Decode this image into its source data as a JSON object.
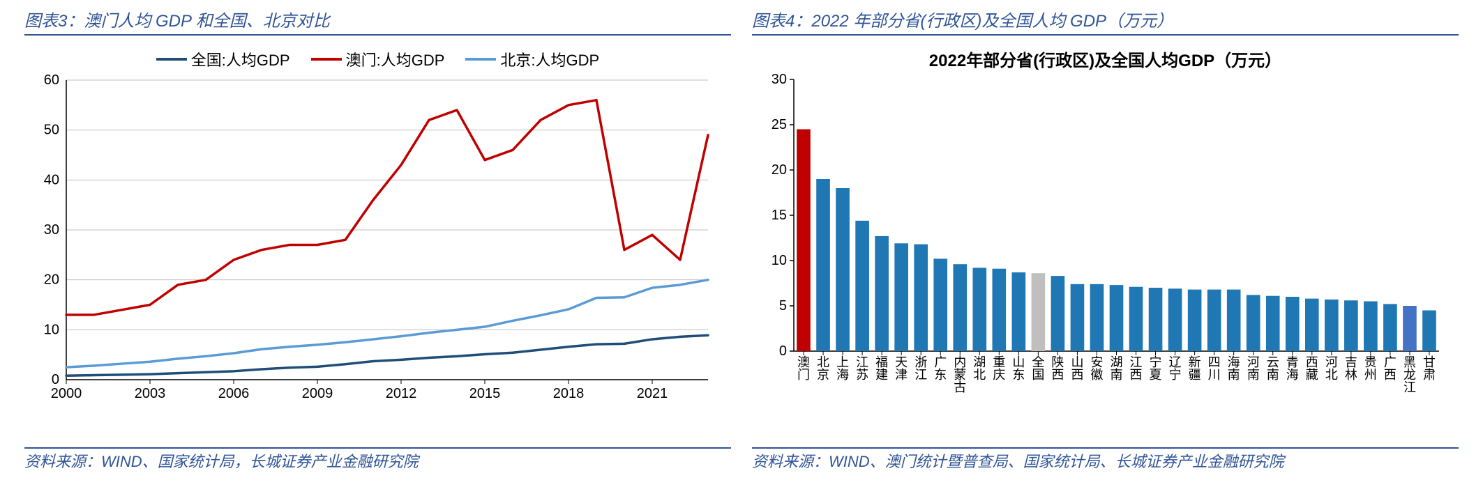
{
  "left": {
    "title": "图表3：澳门人均 GDP 和全国、北京对比",
    "source": "资料来源：WIND、国家统计局，长城证券产业金融研究院",
    "chart": {
      "type": "line",
      "background_color": "#ffffff",
      "grid_color": "#bfbfbf",
      "axis_color": "#000000",
      "label_fontsize": 20,
      "line_width": 3.5,
      "xlim": [
        2000,
        2023
      ],
      "xticks": [
        2000,
        2003,
        2006,
        2009,
        2012,
        2015,
        2018,
        2021
      ],
      "ylim": [
        0,
        60
      ],
      "yticks": [
        0,
        10,
        20,
        30,
        40,
        50,
        60
      ],
      "years": [
        2000,
        2001,
        2002,
        2003,
        2004,
        2005,
        2006,
        2007,
        2008,
        2009,
        2010,
        2011,
        2012,
        2013,
        2014,
        2015,
        2016,
        2017,
        2018,
        2019,
        2020,
        2021,
        2022,
        2023
      ],
      "legend": {
        "national": "全国:人均GDP",
        "macau": "澳门:人均GDP",
        "beijing": "北京:人均GDP"
      },
      "series": {
        "national": {
          "color": "#1f4e79",
          "values": [
            0.8,
            0.9,
            1.0,
            1.1,
            1.3,
            1.5,
            1.7,
            2.1,
            2.4,
            2.6,
            3.1,
            3.7,
            4.0,
            4.4,
            4.7,
            5.1,
            5.4,
            6.0,
            6.6,
            7.1,
            7.2,
            8.1,
            8.6,
            8.9
          ]
        },
        "macau": {
          "color": "#c00000",
          "values": [
            13,
            13,
            14,
            15,
            19,
            20,
            24,
            26,
            27,
            27,
            28,
            36,
            43,
            52,
            54,
            44,
            46,
            52,
            55,
            56,
            26,
            29,
            24,
            49
          ]
        },
        "beijing": {
          "color": "#5b9bd5",
          "values": [
            2.5,
            2.8,
            3.2,
            3.6,
            4.2,
            4.7,
            5.3,
            6.1,
            6.6,
            7.0,
            7.5,
            8.1,
            8.7,
            9.4,
            10.0,
            10.6,
            11.8,
            12.9,
            14.1,
            16.4,
            16.5,
            18.4,
            19.0,
            20.0
          ]
        }
      }
    }
  },
  "right": {
    "title": "图表4：2022 年部分省(行政区)及全国人均 GDP（万元）",
    "source": "资料来源：WIND、澳门统计暨普查局、国家统计局、长城证券产业金融研究院",
    "chart": {
      "type": "bar",
      "title": "2022年部分省(行政区)及全国人均GDP（万元）",
      "title_fontsize": 24,
      "background_color": "#ffffff",
      "axis_color": "#000000",
      "label_fontsize": 18,
      "ylim": [
        0,
        30
      ],
      "yticks": [
        0,
        5,
        10,
        15,
        20,
        25,
        30
      ],
      "bar_width": 0.7,
      "default_color": "#1f77b4",
      "categories": [
        "澳门",
        "北京",
        "上海",
        "江苏",
        "福建",
        "天津",
        "浙江",
        "广东",
        "内蒙古",
        "湖北",
        "重庆",
        "山东",
        "全国",
        "陕西",
        "山西",
        "安徽",
        "湖南",
        "江西",
        "宁夏",
        "辽宁",
        "新疆",
        "四川",
        "海南",
        "河南",
        "云南",
        "青海",
        "西藏",
        "河北",
        "吉林",
        "贵州",
        "广西",
        "黑龙江",
        "甘肃"
      ],
      "values": [
        24.5,
        19.0,
        18.0,
        14.4,
        12.7,
        11.9,
        11.8,
        10.2,
        9.6,
        9.2,
        9.1,
        8.7,
        8.6,
        8.3,
        7.4,
        7.4,
        7.3,
        7.1,
        7.0,
        6.9,
        6.8,
        6.8,
        6.8,
        6.2,
        6.1,
        6.0,
        5.8,
        5.7,
        5.6,
        5.5,
        5.2,
        5.0,
        4.5
      ],
      "bar_colors": [
        "#c00000",
        "#1f77b4",
        "#1f77b4",
        "#1f77b4",
        "#1f77b4",
        "#1f77b4",
        "#1f77b4",
        "#1f77b4",
        "#1f77b4",
        "#1f77b4",
        "#1f77b4",
        "#1f77b4",
        "#bfbfbf",
        "#1f77b4",
        "#1f77b4",
        "#1f77b4",
        "#1f77b4",
        "#1f77b4",
        "#1f77b4",
        "#1f77b4",
        "#1f77b4",
        "#1f77b4",
        "#1f77b4",
        "#1f77b4",
        "#1f77b4",
        "#1f77b4",
        "#1f77b4",
        "#1f77b4",
        "#1f77b4",
        "#1f77b4",
        "#1f77b4",
        "#4472c4",
        "#1f77b4"
      ]
    }
  }
}
